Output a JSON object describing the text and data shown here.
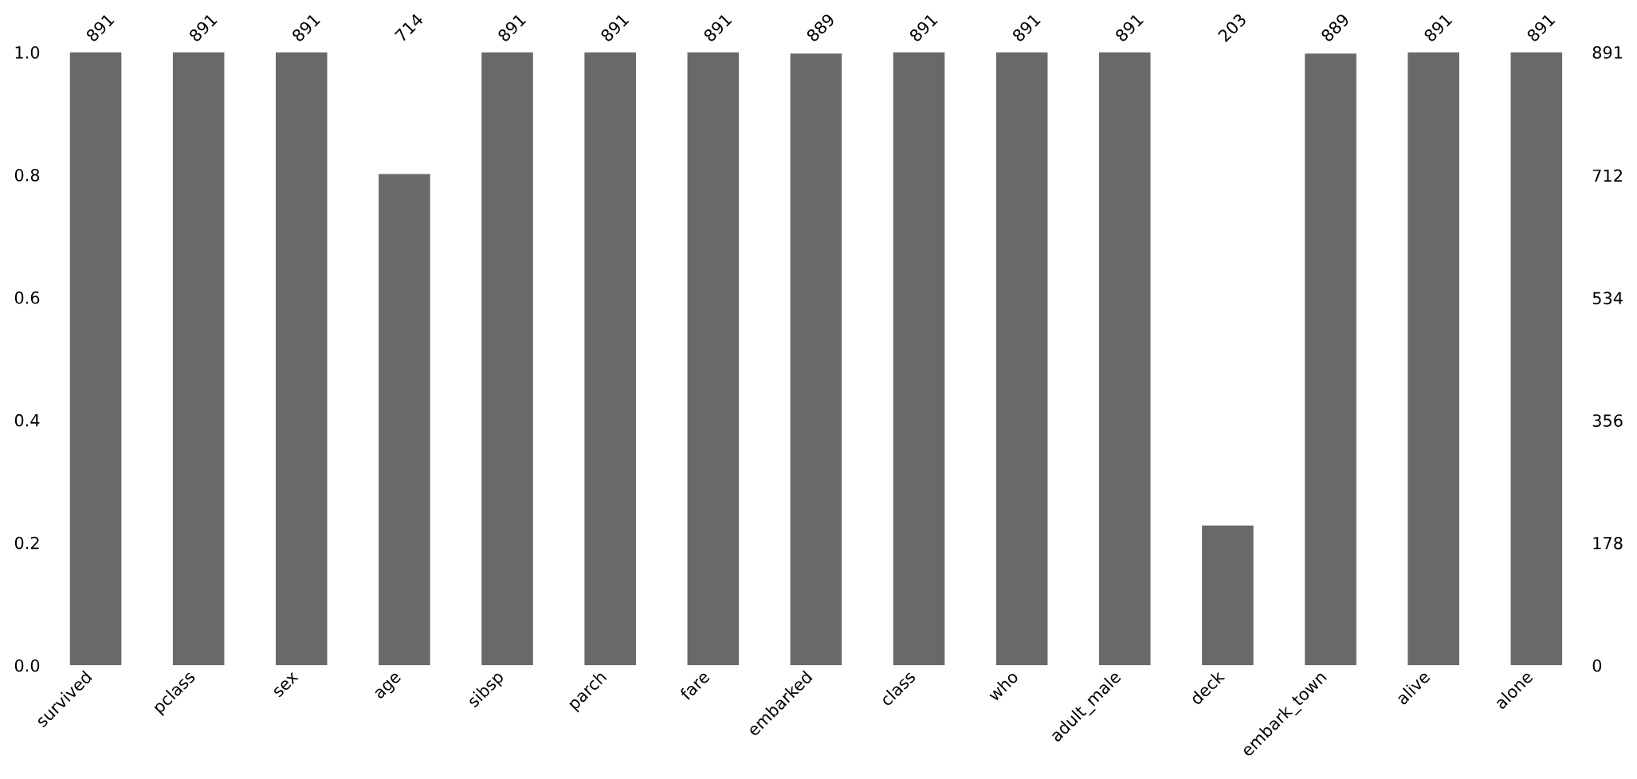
{
  "chart_data": {
    "type": "bar",
    "categories": [
      "survived",
      "pclass",
      "sex",
      "age",
      "sibsp",
      "parch",
      "fare",
      "embarked",
      "class",
      "who",
      "adult_male",
      "deck",
      "embark_town",
      "alive",
      "alone"
    ],
    "series": [
      {
        "color": "#696969",
        "axis": "y2",
        "values": [
          891,
          891,
          891,
          714,
          891,
          891,
          891,
          889,
          891,
          891,
          891,
          203,
          889,
          891,
          891
        ]
      }
    ],
    "annotations": [
      "891",
      "891",
      "891",
      "714",
      "891",
      "891",
      "891",
      "889",
      "891",
      "891",
      "891",
      "203",
      "889",
      "891",
      "891"
    ],
    "ylim": [
      0,
      1
    ],
    "yticks": [
      {
        "value": 0,
        "label": "0.0"
      },
      0.2,
      0.4,
      0.6,
      0.8,
      {
        "value": 1,
        "label": "1.0"
      }
    ],
    "y2lim": [
      0,
      891
    ],
    "y2ticks": [
      0,
      178,
      356,
      534,
      712,
      891
    ],
    "grid": false,
    "legend": false
  }
}
